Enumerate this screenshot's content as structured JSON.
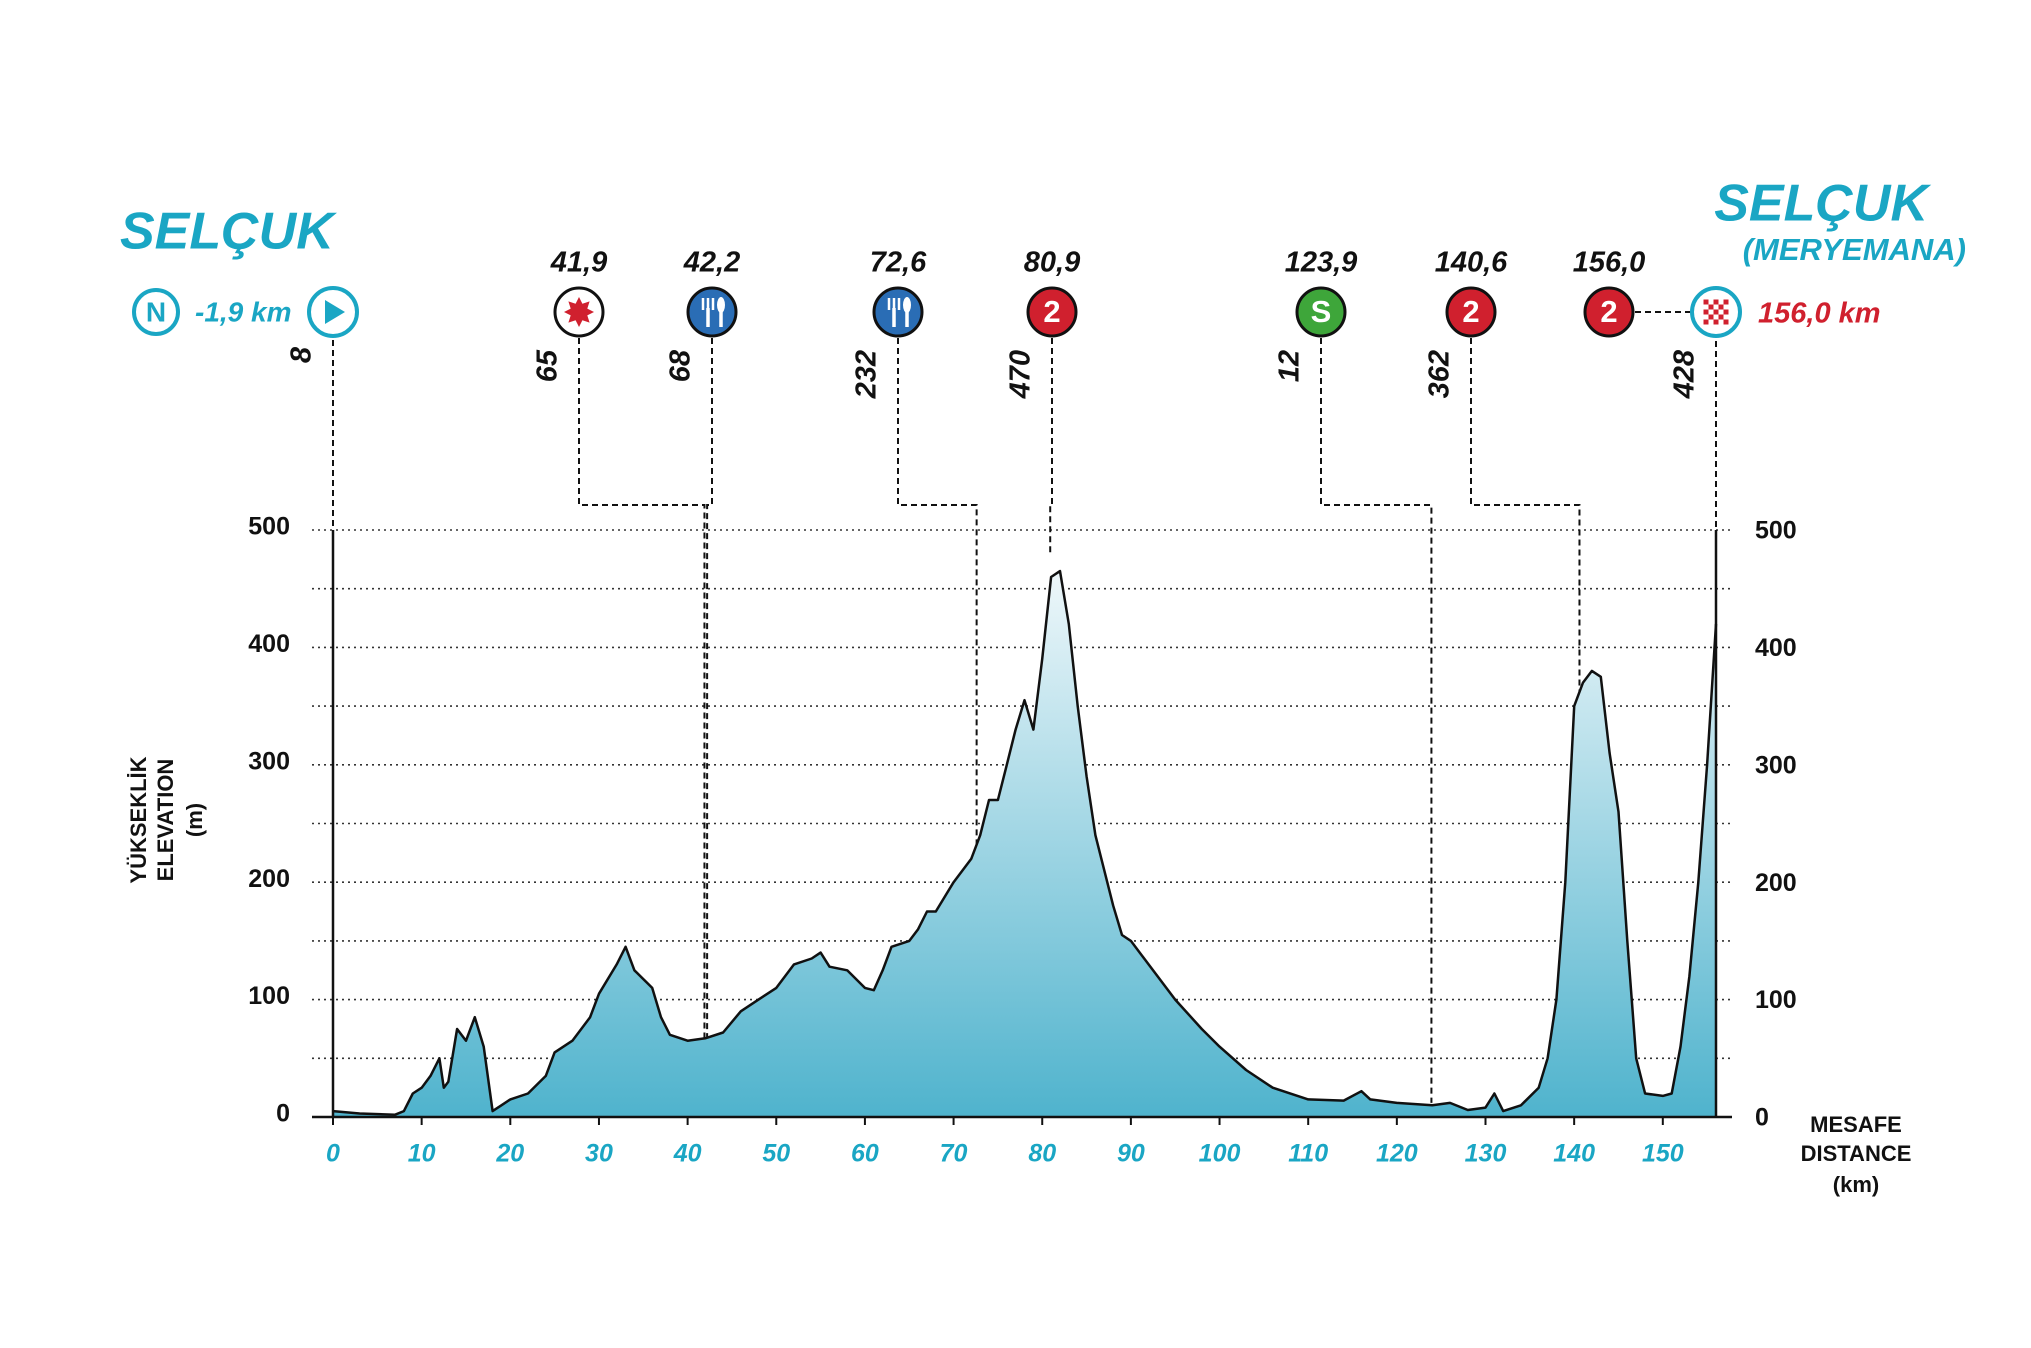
{
  "chart_data": {
    "type": "area",
    "start_title": "SELÇUK",
    "finish_title": "SELÇUK",
    "finish_subtitle": "(MERYEMANA)",
    "start_note": {
      "symbol": "N",
      "label": "-1,9 km"
    },
    "finish_label": "156,0 km",
    "ylabel": [
      "YÜKSEKLİK",
      "ELEVATION",
      "(m)"
    ],
    "xlabel": [
      "MESAFE",
      "DISTANCE",
      "(km)"
    ],
    "color": "#1aa6c4",
    "line_color": "#111111",
    "x": [
      0,
      3,
      7,
      8,
      9,
      10,
      11,
      12,
      12.5,
      13,
      14,
      15,
      16,
      17,
      18,
      19,
      20,
      22,
      24,
      25,
      27,
      29,
      30,
      32,
      33,
      34,
      36,
      37,
      38,
      40,
      42,
      44,
      46,
      48,
      50,
      52,
      54,
      55,
      56,
      58,
      60,
      61,
      62,
      63,
      65,
      66,
      67,
      68,
      70,
      72,
      73,
      74,
      75,
      76,
      77,
      78,
      79,
      80,
      81,
      82,
      83,
      84,
      85,
      86,
      88,
      89,
      90,
      92,
      95,
      98,
      100,
      103,
      106,
      110,
      114,
      116,
      117,
      120,
      124,
      126,
      128,
      130,
      131,
      132,
      134,
      136,
      137,
      138,
      139,
      140,
      141,
      142,
      143,
      144,
      145,
      146,
      147,
      148,
      150,
      151,
      152,
      153,
      154,
      155,
      156
    ],
    "values": [
      5,
      3,
      2,
      5,
      20,
      25,
      35,
      50,
      25,
      30,
      75,
      65,
      85,
      60,
      5,
      10,
      15,
      20,
      35,
      55,
      65,
      85,
      105,
      130,
      145,
      125,
      110,
      85,
      70,
      65,
      67,
      72,
      90,
      100,
      110,
      130,
      135,
      140,
      128,
      125,
      110,
      108,
      125,
      145,
      150,
      160,
      175,
      175,
      200,
      220,
      240,
      270,
      270,
      300,
      330,
      355,
      330,
      390,
      460,
      465,
      420,
      350,
      290,
      240,
      180,
      155,
      150,
      130,
      100,
      75,
      60,
      40,
      25,
      15,
      14,
      22,
      15,
      12,
      10,
      12,
      6,
      8,
      20,
      5,
      10,
      25,
      50,
      100,
      200,
      350,
      370,
      380,
      375,
      310,
      260,
      150,
      50,
      20,
      18,
      20,
      60,
      120,
      200,
      300,
      420
    ],
    "start": {
      "km": 0,
      "elevation": 8
    },
    "markers": [
      {
        "km": 41.9,
        "km_label": "41,9",
        "elevation": 65,
        "icon": "intermediate",
        "color": "#d0202e"
      },
      {
        "km": 42.2,
        "km_label": "42,2",
        "elevation": 68,
        "icon": "feed",
        "color": "#2a6db5"
      },
      {
        "km": 72.6,
        "km_label": "72,6",
        "elevation": 232,
        "icon": "feed",
        "color": "#2a6db5"
      },
      {
        "km": 80.9,
        "km_label": "80,9",
        "elevation": 470,
        "icon": "climb",
        "symbol": "2",
        "color": "#d0202e"
      },
      {
        "km": 123.9,
        "km_label": "123,9",
        "elevation": 12,
        "icon": "sprint",
        "symbol": "S",
        "color": "#3ea63a"
      },
      {
        "km": 140.6,
        "km_label": "140,6",
        "elevation": 362,
        "icon": "climb",
        "symbol": "2",
        "color": "#d0202e"
      },
      {
        "km": 156.0,
        "km_label": "156,0",
        "elevation": 428,
        "icon": "climb",
        "symbol": "2",
        "color": "#d0202e"
      }
    ],
    "xlim": [
      0,
      156
    ],
    "ylim": [
      0,
      500
    ],
    "xticks": [
      0,
      10,
      20,
      30,
      40,
      50,
      60,
      70,
      80,
      90,
      100,
      110,
      120,
      130,
      140,
      150
    ],
    "yticks": [
      0,
      100,
      200,
      300,
      400,
      500
    ],
    "yminor": [
      50,
      150,
      250,
      350,
      450
    ],
    "grid": true
  }
}
